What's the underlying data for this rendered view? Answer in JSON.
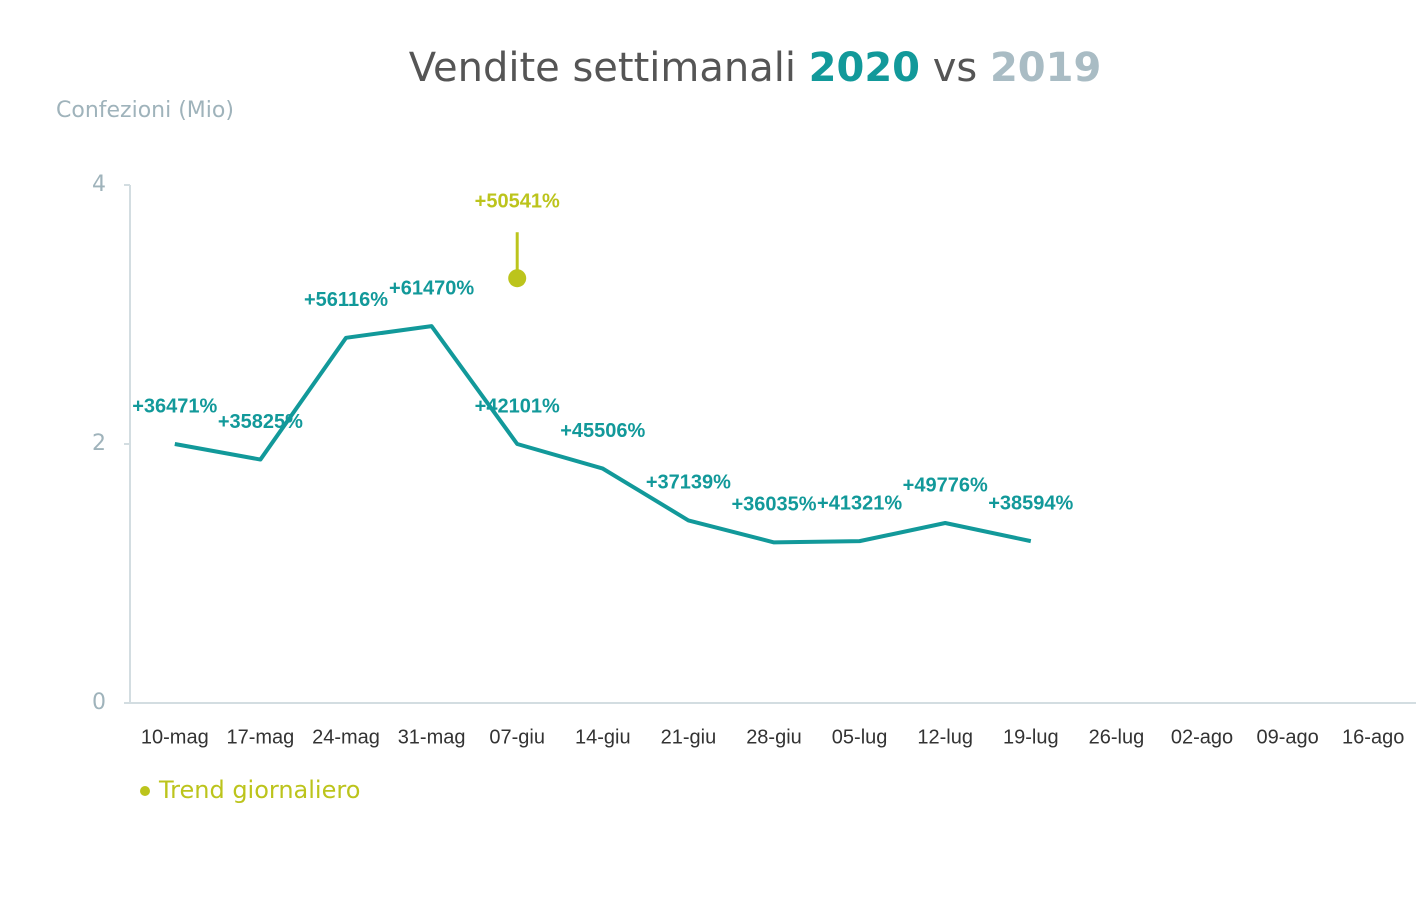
{
  "chart_data": {
    "type": "line",
    "title": {
      "text": "Vendite settimanali",
      "year": "2020",
      "vs": "vs",
      "comparison_year": "2019"
    },
    "y_label": "Confezioni (Mio)",
    "categories": [
      "10-mag",
      "17-mag",
      "24-mag",
      "31-mag",
      "07-giu",
      "14-giu",
      "21-giu",
      "28-giu",
      "05-lug",
      "12-lug",
      "19-lug",
      "26-lug",
      "02-ago",
      "09-ago",
      "16-ago"
    ],
    "ylim": [
      0,
      4
    ],
    "yticks": [
      0,
      2,
      4
    ],
    "series": [
      {
        "color": "#12999a",
        "values": [
          2.0,
          1.88,
          2.82,
          2.91,
          2.0,
          1.81,
          1.41,
          1.24,
          1.25,
          1.39,
          1.25,
          null,
          null,
          null,
          null
        ],
        "labels": [
          "+36471%",
          "+35825%",
          "+56116%",
          "+61470%",
          "+42101%",
          "+45506%",
          "+37139%",
          "+36035%",
          "+41321%",
          "+49776%",
          "+38594%",
          null,
          null,
          null,
          null
        ]
      },
      {
        "name": "Trend giornaliero",
        "color": "#bcc41c",
        "values": [
          null,
          null,
          null,
          null,
          3.28,
          null,
          null,
          null,
          null,
          null,
          null,
          null,
          null,
          null,
          null
        ],
        "labels": [
          null,
          null,
          null,
          null,
          "+50541%",
          null,
          null,
          null,
          null,
          null,
          null,
          null,
          null,
          null,
          null
        ]
      }
    ]
  }
}
